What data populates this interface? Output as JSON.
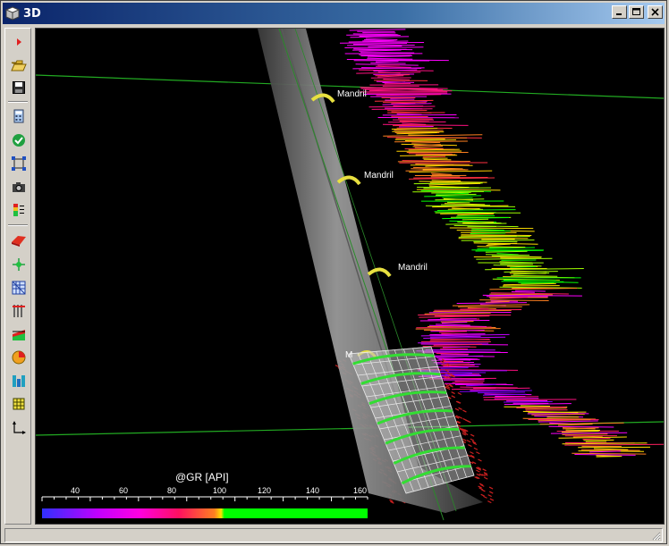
{
  "window": {
    "title": "3D",
    "title_icon": "cube-icon"
  },
  "title_controls": [
    {
      "name": "minimize-button",
      "icon": "minimize-icon"
    },
    {
      "name": "maximize-button",
      "icon": "maximize-icon"
    },
    {
      "name": "close-button",
      "icon": "close-icon"
    }
  ],
  "toolbar": {
    "items": [
      {
        "name": "play-button",
        "icon": "play-icon"
      },
      {
        "name": "open-button",
        "icon": "open-folder-icon"
      },
      {
        "name": "save-button",
        "icon": "save-icon"
      },
      {
        "name": "calculator-button",
        "icon": "calculator-icon"
      },
      {
        "name": "validate-button",
        "icon": "checkmark-icon"
      },
      {
        "name": "zoom-extents-button",
        "icon": "zoom-extents-icon"
      },
      {
        "name": "snapshot-button",
        "icon": "camera-icon"
      },
      {
        "name": "color-legend-button",
        "icon": "legend-icon"
      },
      {
        "name": "surface-button",
        "icon": "surface-icon"
      },
      {
        "name": "center-point-button",
        "icon": "crosshair-icon"
      },
      {
        "name": "grid-button",
        "icon": "grid-icon"
      },
      {
        "name": "well-tracks-button",
        "icon": "well-tracks-icon"
      },
      {
        "name": "log-display-button",
        "icon": "log-display-icon"
      },
      {
        "name": "pie-chart-button",
        "icon": "pie-chart-icon"
      },
      {
        "name": "completion-button",
        "icon": "completion-icon"
      },
      {
        "name": "cube-button",
        "icon": "cube-mesh-icon"
      },
      {
        "name": "axes-button",
        "icon": "axes-icon"
      }
    ]
  },
  "scene": {
    "labels": [
      "Mandril",
      "Mandril",
      "Mandril",
      "M"
    ],
    "colors": {
      "background": "#000000",
      "horizon_line": "#22aa22",
      "pipe": "#8a8a8a",
      "mandrel": "#e8e040",
      "screen": "#e8e8e8",
      "screen_ring": "#33dd33",
      "marker_red": "#cc2020"
    }
  },
  "colorbar": {
    "title": "@GR [API]",
    "ticks": [
      "40",
      "60",
      "80",
      "100",
      "120",
      "140",
      "160"
    ],
    "colors": [
      "#3030ff",
      "#ff00ff",
      "#ff2020",
      "#ffff00",
      "#00ff00"
    ]
  },
  "chart_data": {
    "type": "line",
    "title": "",
    "xlabel": "@GR [API]",
    "colorscale_range": [
      30,
      165
    ],
    "colorscale_ticks": [
      40,
      60,
      80,
      100,
      120,
      140,
      160
    ]
  }
}
